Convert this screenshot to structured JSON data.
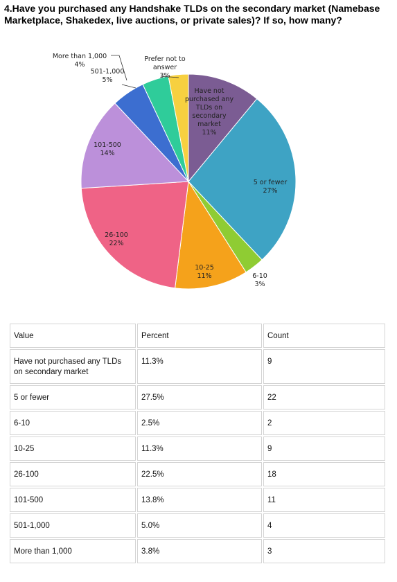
{
  "chart_data": {
    "type": "pie",
    "title": "4.Have you purchased any Handshake TLDs on the secondary market (Namebase Marketplace, Shakedex, live auctions, or private sales)? If so, how many?",
    "categories": [
      "Have not purchased any TLDs on secondary market",
      "5 or fewer",
      "6-10",
      "10-25",
      "26-100",
      "101-500",
      "501-1,000",
      "More than 1,000",
      "Prefer not to answer"
    ],
    "values": [
      11,
      27,
      3,
      11,
      22,
      14,
      5,
      4,
      3
    ],
    "value_labels": [
      "11%",
      "27%",
      "3%",
      "11%",
      "22%",
      "14%",
      "5%",
      "4%",
      "3%"
    ],
    "colors": [
      "#7b5c93",
      "#3ea3c4",
      "#8fcc33",
      "#f5a21b",
      "#ef6386",
      "#bc90da",
      "#3c6ed0",
      "#2fcc9a",
      "#f7d040"
    ]
  },
  "table": {
    "header": [
      "Value",
      "Percent",
      "Count"
    ],
    "rows": [
      [
        "Have not purchased any TLDs on secondary market",
        "11.3%",
        "9"
      ],
      [
        "5 or fewer",
        "27.5%",
        "22"
      ],
      [
        "6-10",
        "2.5%",
        "2"
      ],
      [
        "10-25",
        "11.3%",
        "9"
      ],
      [
        "26-100",
        "22.5%",
        "18"
      ],
      [
        "101-500",
        "13.8%",
        "11"
      ],
      [
        "501-1,000",
        "5.0%",
        "4"
      ],
      [
        "More than 1,000",
        "3.8%",
        "3"
      ]
    ]
  }
}
